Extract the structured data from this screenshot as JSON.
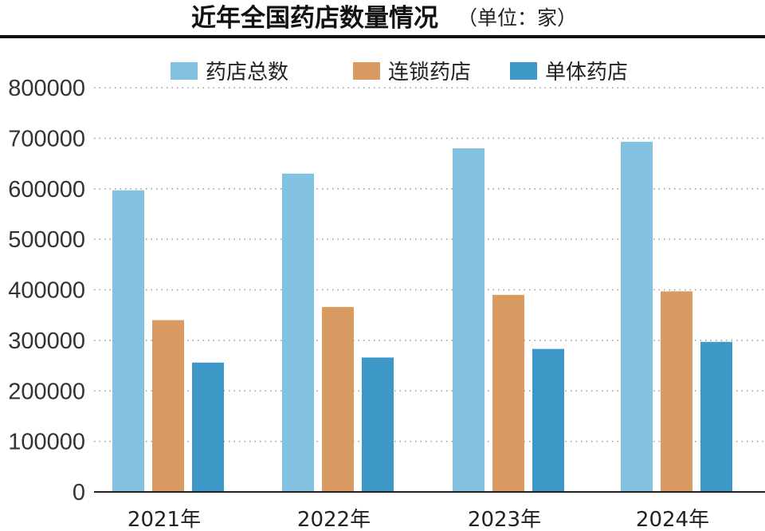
{
  "chart_data": {
    "type": "bar",
    "title": "近年全国药店数量情况",
    "unit_label": "（单位：家）",
    "categories": [
      "2021年",
      "2022年",
      "2023年",
      "2024年"
    ],
    "series": [
      {
        "name": "药店总数",
        "color": "#82c2e0",
        "values": [
          597000,
          630000,
          680000,
          693000
        ]
      },
      {
        "name": "连锁药店",
        "color": "#d99b61",
        "values": [
          340000,
          366000,
          390000,
          397000
        ]
      },
      {
        "name": "单体药店",
        "color": "#3d98c8",
        "values": [
          256000,
          266000,
          283000,
          297000
        ]
      }
    ],
    "ylim": [
      0,
      800000
    ],
    "yticks": [
      "0",
      "100000",
      "200000",
      "300000",
      "400000",
      "500000",
      "600000",
      "700000",
      "800000"
    ],
    "grid": true,
    "legend_position": "top"
  }
}
